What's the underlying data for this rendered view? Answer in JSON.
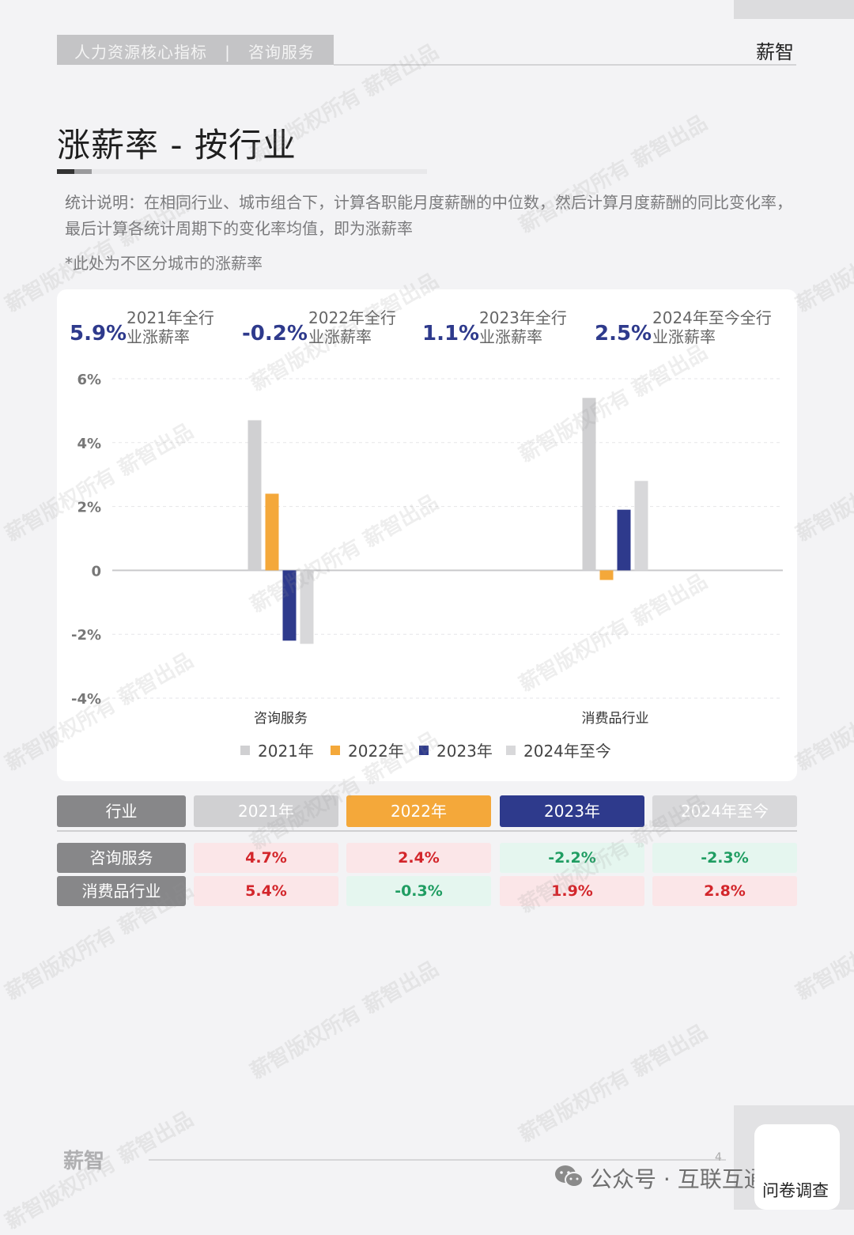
{
  "header": {
    "breadcrumb": "人力资源核心指标   |   咨询服务",
    "brand": "薪智"
  },
  "page": {
    "title": "涨薪率 - 按行业",
    "description": "统计说明：在相同行业、城市组合下，计算各职能月度薪酬的中位数，然后计算月度薪酬的同比变化率，最后计算各统计周期下的变化率均值，即为涨薪率",
    "note": "*此处为不区分城市的涨薪率"
  },
  "kpis": [
    {
      "value": "5.9%",
      "label": "2021年全行业涨薪率"
    },
    {
      "value": "-0.2%",
      "label": "2022年全行业涨薪率"
    },
    {
      "value": "1.1%",
      "label": "2023年全行业涨薪率"
    },
    {
      "value": "2.5%",
      "label": "2024年至今全行业涨薪率"
    }
  ],
  "chart_data": {
    "type": "bar",
    "categories": [
      "咨询服务",
      "消费品行业"
    ],
    "series": [
      {
        "name": "2021年",
        "values": [
          4.7,
          5.4
        ],
        "color": "#d0d0d2"
      },
      {
        "name": "2022年",
        "values": [
          2.4,
          -0.3
        ],
        "color": "#f4a83a"
      },
      {
        "name": "2023年",
        "values": [
          -2.2,
          1.9
        ],
        "color": "#2e3a8c"
      },
      {
        "name": "2024年至今",
        "values": [
          -2.3,
          2.8
        ],
        "color": "#d8d8da"
      }
    ],
    "y_ticks": [
      6,
      4,
      2,
      0,
      -2,
      -4
    ],
    "y_tick_labels": [
      "6%",
      "4%",
      "2%",
      "0",
      "-2%",
      "-4%"
    ],
    "ylim": [
      -4,
      6
    ],
    "legend_position": "bottom",
    "grid": true
  },
  "table": {
    "headers": [
      "行业",
      "2021年",
      "2022年",
      "2023年",
      "2024年至今"
    ],
    "header_colors": [
      "#878789",
      "#d0d0d2",
      "#f4a83a",
      "#2e3a8c",
      "#d8d8da"
    ],
    "rows": [
      {
        "label": "咨询服务",
        "values": [
          "4.7%",
          "2.4%",
          "-2.2%",
          "-2.3%"
        ]
      },
      {
        "label": "消费品行业",
        "values": [
          "5.4%",
          "-0.3%",
          "1.9%",
          "2.8%"
        ]
      }
    ]
  },
  "footer": {
    "logo": "薪智",
    "page_number": "4",
    "wechat": "公众号 · 互联互通社区",
    "survey": "问卷调查"
  },
  "watermark": "薪智版权所有 薪智出品"
}
